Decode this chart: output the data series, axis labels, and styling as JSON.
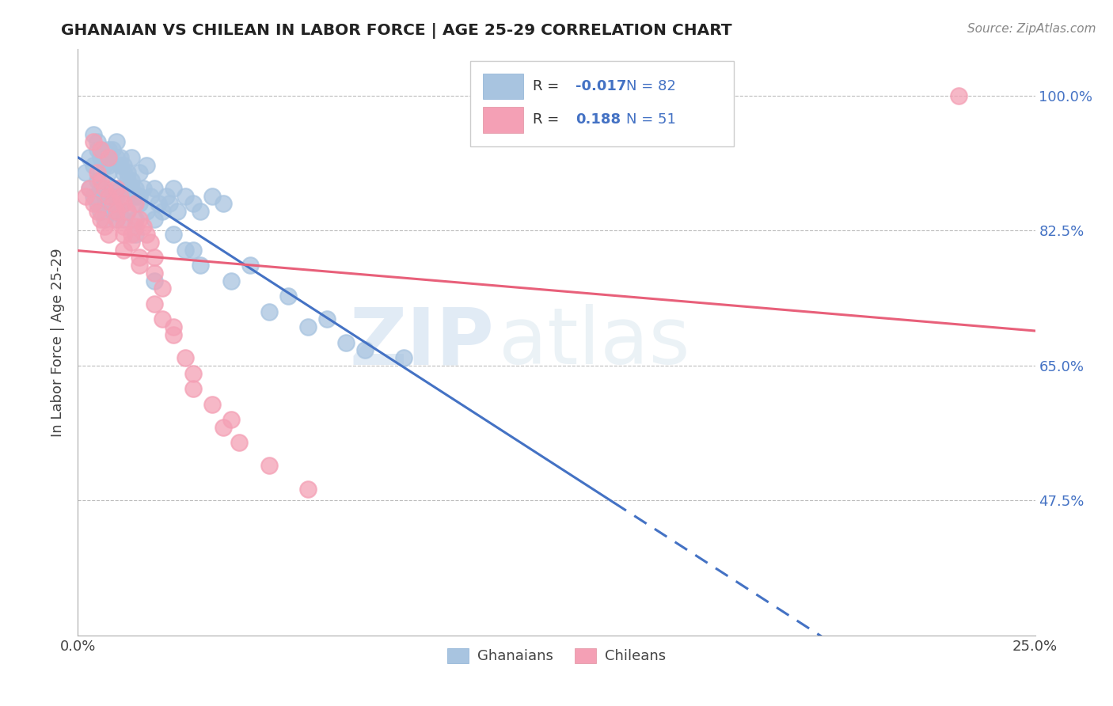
{
  "title": "GHANAIAN VS CHILEAN IN LABOR FORCE | AGE 25-29 CORRELATION CHART",
  "source_text": "Source: ZipAtlas.com",
  "ylabel": "In Labor Force | Age 25-29",
  "legend_r_ghanaian": "-0.017",
  "legend_n_ghanaian": "82",
  "legend_r_chilean": "0.188",
  "legend_n_chilean": "51",
  "ghanaian_color": "#a8c4e0",
  "chilean_color": "#f4a0b5",
  "ghanaian_line_color": "#4472c4",
  "chilean_line_color": "#e8607a",
  "watermark_zip": "ZIP",
  "watermark_atlas": "atlas",
  "xlim": [
    0.0,
    0.25
  ],
  "ylim": [
    0.3,
    1.06
  ],
  "ytick_vals": [
    0.475,
    0.65,
    0.825,
    1.0
  ],
  "ytick_labels": [
    "47.5%",
    "65.0%",
    "82.5%",
    "100.0%"
  ],
  "ghanaian_x": [
    0.002,
    0.003,
    0.003,
    0.004,
    0.004,
    0.005,
    0.005,
    0.005,
    0.006,
    0.006,
    0.006,
    0.007,
    0.007,
    0.007,
    0.008,
    0.008,
    0.008,
    0.009,
    0.009,
    0.01,
    0.01,
    0.01,
    0.011,
    0.011,
    0.012,
    0.012,
    0.013,
    0.013,
    0.014,
    0.014,
    0.015,
    0.015,
    0.016,
    0.016,
    0.017,
    0.018,
    0.018,
    0.019,
    0.02,
    0.021,
    0.022,
    0.023,
    0.024,
    0.025,
    0.026,
    0.028,
    0.03,
    0.032,
    0.035,
    0.038,
    0.004,
    0.005,
    0.006,
    0.007,
    0.008,
    0.009,
    0.01,
    0.011,
    0.012,
    0.013,
    0.014,
    0.015,
    0.016,
    0.02,
    0.025,
    0.03,
    0.04,
    0.05,
    0.06,
    0.07,
    0.085,
    0.045,
    0.055,
    0.065,
    0.075,
    0.028,
    0.032,
    0.02,
    0.015,
    0.012,
    0.008,
    0.006
  ],
  "ghanaian_y": [
    0.9,
    0.92,
    0.88,
    0.91,
    0.87,
    0.93,
    0.89,
    0.86,
    0.92,
    0.88,
    0.85,
    0.91,
    0.87,
    0.84,
    0.9,
    0.86,
    0.93,
    0.88,
    0.85,
    0.92,
    0.87,
    0.84,
    0.91,
    0.88,
    0.9,
    0.86,
    0.89,
    0.85,
    0.88,
    0.92,
    0.87,
    0.84,
    0.9,
    0.86,
    0.88,
    0.85,
    0.91,
    0.87,
    0.88,
    0.86,
    0.85,
    0.87,
    0.86,
    0.88,
    0.85,
    0.87,
    0.86,
    0.85,
    0.87,
    0.86,
    0.95,
    0.94,
    0.93,
    0.92,
    0.91,
    0.93,
    0.94,
    0.92,
    0.91,
    0.9,
    0.89,
    0.88,
    0.87,
    0.84,
    0.82,
    0.8,
    0.76,
    0.72,
    0.7,
    0.68,
    0.66,
    0.78,
    0.74,
    0.71,
    0.67,
    0.8,
    0.78,
    0.76,
    0.82,
    0.84,
    0.86,
    0.88
  ],
  "chilean_x": [
    0.002,
    0.003,
    0.004,
    0.005,
    0.005,
    0.006,
    0.006,
    0.007,
    0.007,
    0.008,
    0.008,
    0.009,
    0.01,
    0.01,
    0.011,
    0.012,
    0.012,
    0.013,
    0.014,
    0.015,
    0.015,
    0.016,
    0.017,
    0.018,
    0.019,
    0.02,
    0.022,
    0.025,
    0.028,
    0.03,
    0.035,
    0.038,
    0.042,
    0.05,
    0.06,
    0.02,
    0.025,
    0.012,
    0.008,
    0.006,
    0.004,
    0.016,
    0.03,
    0.04,
    0.022,
    0.01,
    0.014,
    0.02,
    0.016,
    0.012,
    0.23
  ],
  "chilean_y": [
    0.87,
    0.88,
    0.86,
    0.9,
    0.85,
    0.89,
    0.84,
    0.88,
    0.83,
    0.87,
    0.82,
    0.86,
    0.88,
    0.84,
    0.87,
    0.83,
    0.86,
    0.85,
    0.82,
    0.86,
    0.83,
    0.84,
    0.83,
    0.82,
    0.81,
    0.79,
    0.75,
    0.7,
    0.66,
    0.64,
    0.6,
    0.57,
    0.55,
    0.52,
    0.49,
    0.73,
    0.69,
    0.8,
    0.92,
    0.93,
    0.94,
    0.78,
    0.62,
    0.58,
    0.71,
    0.85,
    0.81,
    0.77,
    0.79,
    0.82,
    1.0
  ]
}
